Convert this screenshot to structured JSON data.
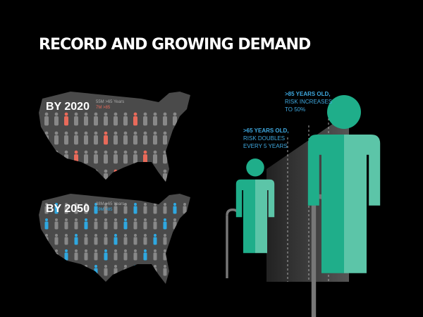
{
  "title": "RECORD AND GROWING DEMAND",
  "maps": [
    {
      "label": "BY 2020",
      "stats": [
        "55M >65 Years",
        "7M >85"
      ]
    },
    {
      "label": "BY 2050",
      "stats": [
        "88M >65 Years",
        "19M >85"
      ]
    }
  ],
  "figures": [
    {
      "heading": ">65 YEARS OLD,",
      "lines": [
        "RISK DOUBLES",
        "EVERY 5 YEARS"
      ]
    },
    {
      "heading": ">85 YEARS OLD,",
      "lines": [
        "RISK INCREASES",
        "TO 50%"
      ]
    }
  ]
}
